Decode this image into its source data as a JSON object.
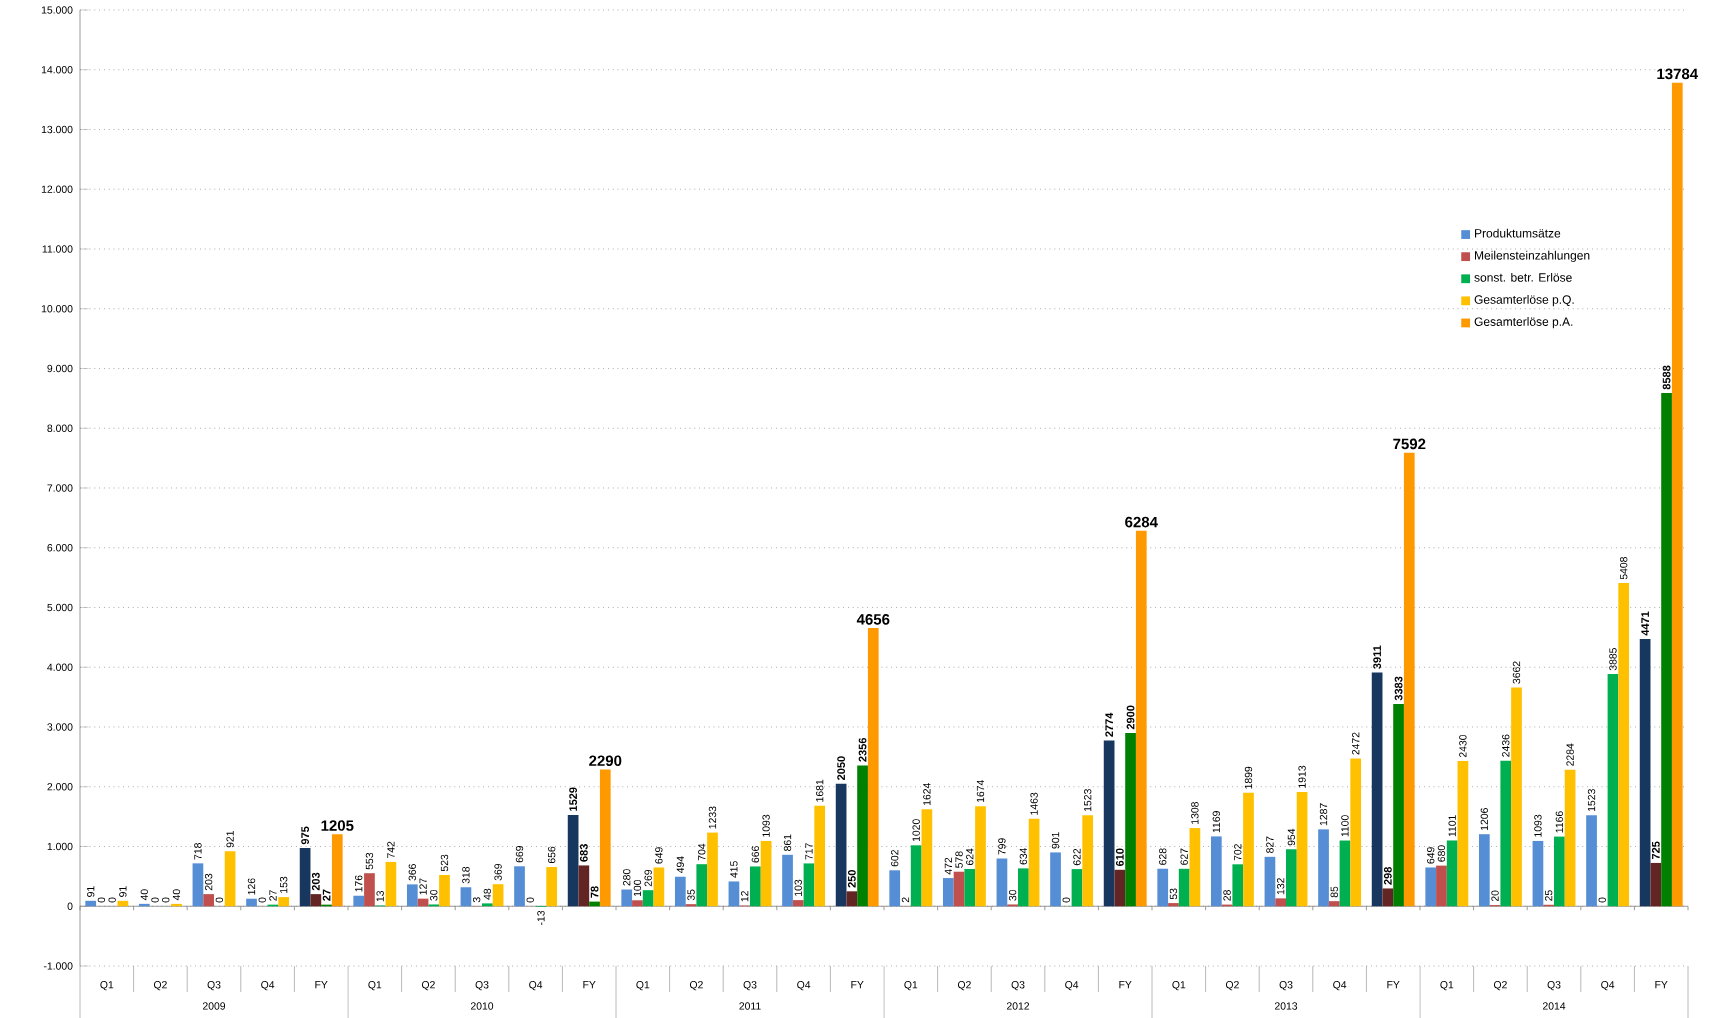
{
  "chart_data": {
    "type": "bar",
    "categories": [
      "Q1",
      "Q2",
      "Q3",
      "Q4",
      "FY",
      "Q1",
      "Q2",
      "Q3",
      "Q4",
      "FY",
      "Q1",
      "Q2",
      "Q3",
      "Q4",
      "FY",
      "Q1",
      "Q2",
      "Q3",
      "Q4",
      "FY",
      "Q1",
      "Q2",
      "Q3",
      "Q4",
      "FY",
      "Q1",
      "Q2",
      "Q3",
      "Q4",
      "FY"
    ],
    "annotations": [
      "2009",
      "2010",
      "2011",
      "2012",
      "2013",
      "2014"
    ],
    "series": [
      {
        "name": "Produktumsätze",
        "color": "#558ed5",
        "colors": [
          "#558ed5",
          "#558ed5",
          "#558ed5",
          "#558ed5",
          "#17375e",
          "#558ed5",
          "#558ed5",
          "#558ed5",
          "#558ed5",
          "#17375e",
          "#558ed5",
          "#558ed5",
          "#558ed5",
          "#558ed5",
          "#17375e",
          "#558ed5",
          "#558ed5",
          "#558ed5",
          "#558ed5",
          "#17375e",
          "#558ed5",
          "#558ed5",
          "#558ed5",
          "#558ed5",
          "#17375e",
          "#558ed5",
          "#558ed5",
          "#558ed5",
          "#558ed5",
          "#17375e"
        ],
        "values": [
          91,
          40,
          718,
          126,
          975,
          176,
          366,
          318,
          669,
          1529,
          280,
          494,
          415,
          861,
          2050,
          602,
          472,
          799,
          901,
          2774,
          628,
          1169,
          827,
          1287,
          3911,
          649,
          1206,
          1093,
          1523,
          4471
        ]
      },
      {
        "name": "Meilensteinzahlungen",
        "color": "#c0504d",
        "colors": [
          "#c0504d",
          "#c0504d",
          "#c0504d",
          "#c0504d",
          "#632523",
          "#c0504d",
          "#c0504d",
          "#c0504d",
          "#c0504d",
          "#632523",
          "#c0504d",
          "#c0504d",
          "#c0504d",
          "#c0504d",
          "#632523",
          "#c0504d",
          "#c0504d",
          "#c0504d",
          "#c0504d",
          "#632523",
          "#c0504d",
          "#c0504d",
          "#c0504d",
          "#c0504d",
          "#632523",
          "#c0504d",
          "#c0504d",
          "#c0504d",
          "#c0504d",
          "#632523"
        ],
        "values": [
          0,
          0,
          203,
          0,
          203,
          553,
          127,
          3,
          0,
          683,
          100,
          35,
          12,
          103,
          250,
          2,
          578,
          30,
          0,
          610,
          53,
          28,
          132,
          85,
          298,
          680,
          20,
          25,
          0,
          725
        ]
      },
      {
        "name": "sonst. betr. Erlöse",
        "color": "#00b050",
        "colors": [
          "#00b050",
          "#00b050",
          "#00b050",
          "#00b050",
          "#008000",
          "#00b050",
          "#00b050",
          "#00b050",
          "#00b050",
          "#008000",
          "#00b050",
          "#00b050",
          "#00b050",
          "#00b050",
          "#008000",
          "#00b050",
          "#00b050",
          "#00b050",
          "#00b050",
          "#008000",
          "#00b050",
          "#00b050",
          "#00b050",
          "#00b050",
          "#008000",
          "#00b050",
          "#00b050",
          "#00b050",
          "#00b050",
          "#008000"
        ],
        "values": [
          0,
          0,
          0,
          27,
          27,
          13,
          30,
          48,
          -13,
          78,
          269,
          704,
          666,
          717,
          2356,
          1020,
          624,
          634,
          622,
          2900,
          627,
          702,
          954,
          1100,
          3383,
          1101,
          2436,
          1166,
          3885,
          8588
        ]
      },
      {
        "name": "Gesamterlöse p.Q.",
        "color": "#ffc000",
        "values": [
          91,
          40,
          921,
          153,
          null,
          742,
          523,
          369,
          656,
          null,
          649,
          1233,
          1093,
          1681,
          null,
          1624,
          1674,
          1463,
          1523,
          null,
          1308,
          1899,
          1913,
          2472,
          null,
          2430,
          3662,
          2284,
          5408,
          null
        ]
      },
      {
        "name": "Gesamterlöse p.A.",
        "color": "#ff9900",
        "values": [
          null,
          null,
          null,
          null,
          1205,
          null,
          null,
          null,
          null,
          2290,
          null,
          null,
          null,
          null,
          4656,
          null,
          null,
          null,
          null,
          6284,
          null,
          null,
          null,
          null,
          7592,
          null,
          null,
          null,
          null,
          13784
        ]
      }
    ],
    "ylim": [
      -1000,
      15000
    ],
    "yticks": [
      {
        "value": -1000,
        "label": "-1.000"
      },
      0,
      {
        "value": 1000,
        "label": "1.000"
      },
      {
        "value": 2000,
        "label": "2.000"
      },
      {
        "value": 3000,
        "label": "3.000"
      },
      {
        "value": 4000,
        "label": "4.000"
      },
      {
        "value": 5000,
        "label": "5.000"
      },
      {
        "value": 6000,
        "label": "6.000"
      },
      {
        "value": 7000,
        "label": "7.000"
      },
      {
        "value": 8000,
        "label": "8.000"
      },
      {
        "value": 9000,
        "label": "9.000"
      },
      {
        "value": 10000,
        "label": "10.000"
      },
      {
        "value": 11000,
        "label": "11.000"
      },
      {
        "value": 12000,
        "label": "12.000"
      },
      {
        "value": 13000,
        "label": "13.000"
      },
      {
        "value": 14000,
        "label": "14.000"
      },
      {
        "value": 15000,
        "label": "15.000"
      }
    ],
    "grid": "y",
    "legend": "right",
    "data_labels": true
  }
}
